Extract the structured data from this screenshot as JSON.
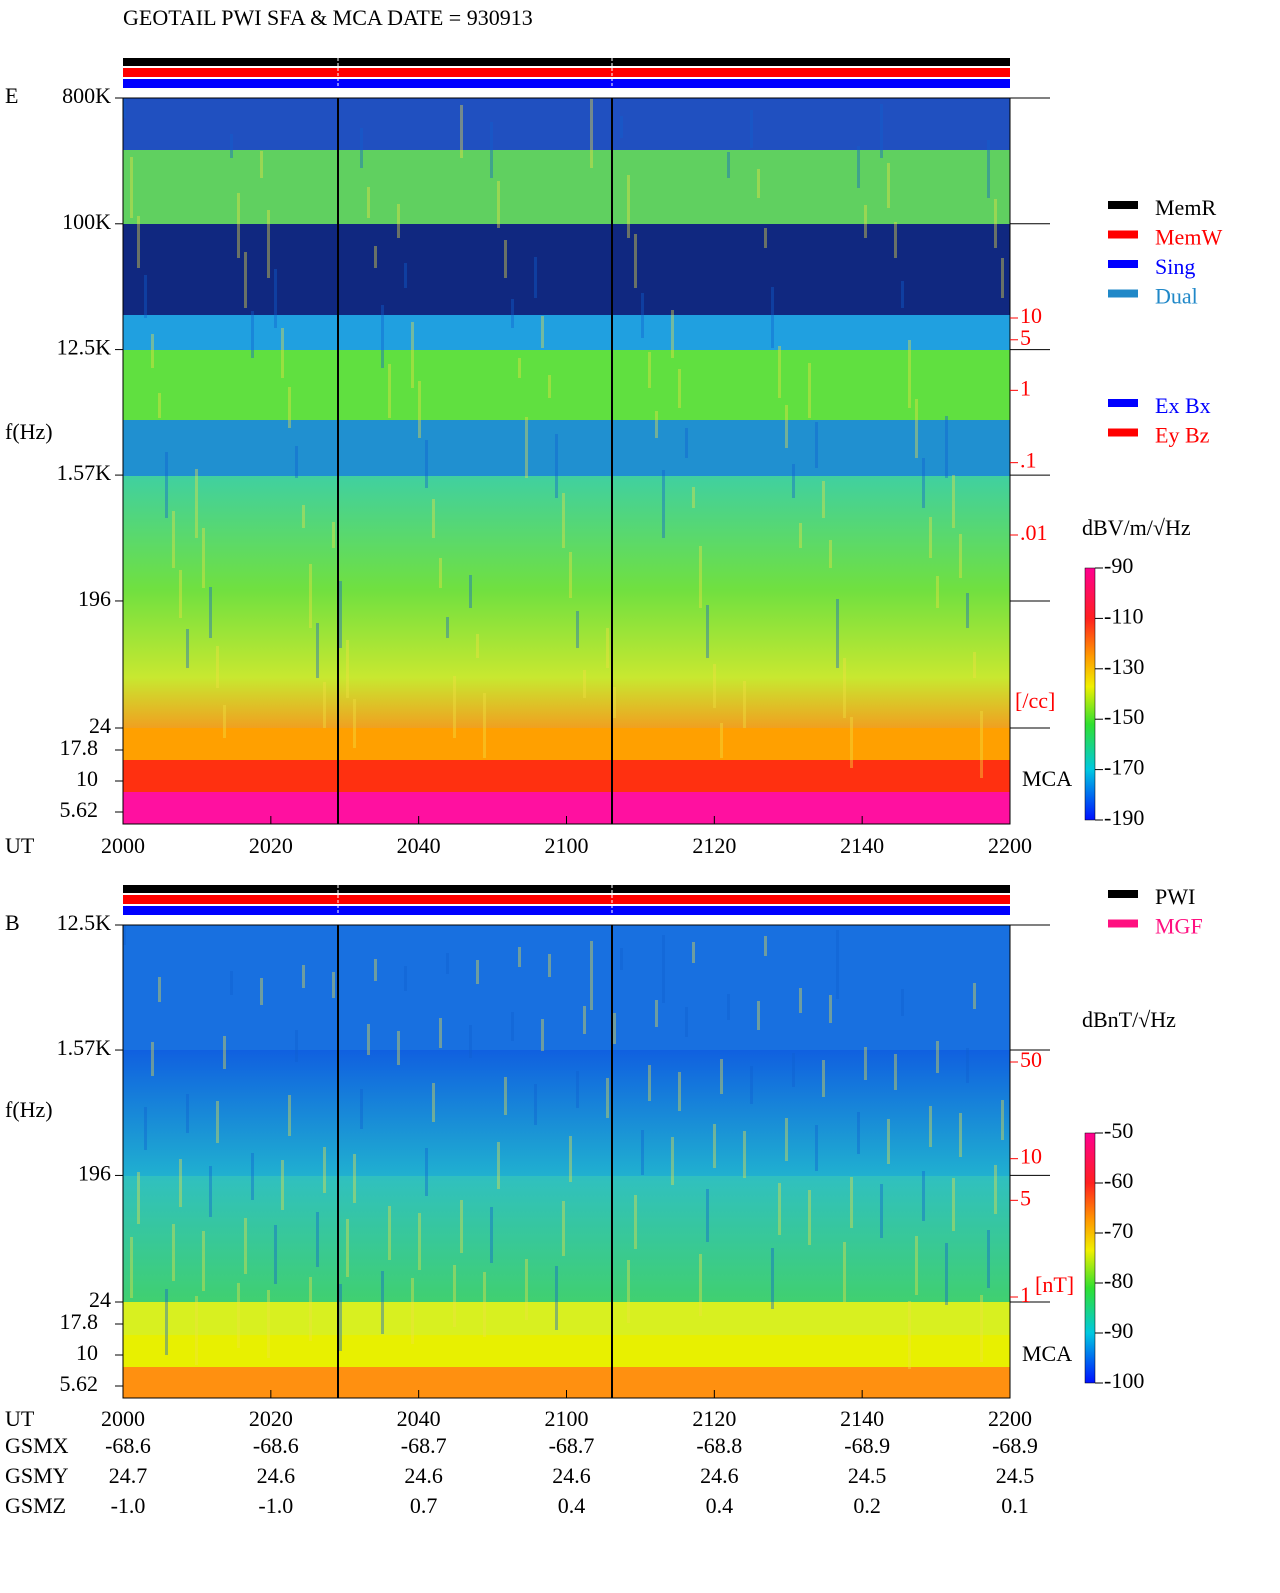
{
  "header": {
    "title": "GEOTAIL  PWI SFA & MCA   DATE = 930913"
  },
  "chart_data": [
    {
      "type": "spectrogram",
      "panel": "E",
      "y_label": "f(Hz)",
      "x_label": "UT",
      "log_scale": true,
      "ylim": [
        24,
        800000
      ],
      "yticks": [
        {
          "value": 800000,
          "label": "800K"
        },
        {
          "value": 100000,
          "label": "100K"
        },
        {
          "value": 12500,
          "label": "12.5K"
        },
        {
          "value": 1570,
          "label": "1.57K"
        },
        196,
        24
      ],
      "mca_label": "MCA",
      "mca_ticks": [
        17.8,
        10,
        5.62
      ],
      "x": [
        "2000",
        "2020",
        "2040",
        "2100",
        "2120",
        "2140",
        "2200"
      ],
      "y2lim": [
        0.01,
        10
      ],
      "y2ticks": [
        10,
        5,
        1,
        {
          "value": 0.1,
          "label": ".1"
        },
        {
          "value": 0.01,
          "label": ".01"
        }
      ],
      "y2_label": "[/cc]",
      "y2_color": "#ff0000",
      "legend": [
        {
          "name": "MemR",
          "color": "#000000"
        },
        {
          "name": "MemW",
          "color": "#ff0000"
        },
        {
          "name": "Sing",
          "color": "#0000ff"
        },
        {
          "name": "Dual",
          "color": "#2088c8"
        }
      ],
      "legend2": [
        {
          "name": "Ex Bx",
          "color": "#0000ff"
        },
        {
          "name": "Ey Bz",
          "color": "#ff0000"
        }
      ],
      "colorbar": {
        "label": "dBV/m/√Hz",
        "lim": [
          -190,
          -90
        ],
        "ticks": [
          -90,
          -110,
          -130,
          -150,
          -170,
          -190
        ]
      }
    },
    {
      "type": "spectrogram",
      "panel": "B",
      "y_label": "f(Hz)",
      "x_label": "UT",
      "log_scale": true,
      "ylim": [
        24,
        12500
      ],
      "yticks": [
        {
          "value": 12500,
          "label": "12.5K"
        },
        {
          "value": 1570,
          "label": "1.57K"
        },
        196,
        24
      ],
      "mca_label": "MCA",
      "mca_ticks": [
        17.8,
        10,
        5.62
      ],
      "x": [
        "2000",
        "2020",
        "2040",
        "2100",
        "2120",
        "2140",
        "2200"
      ],
      "y2lim": [
        1,
        50
      ],
      "y2ticks": [
        50,
        10,
        5,
        1
      ],
      "y2_label": "[nT]",
      "y2_color": "#ff0000",
      "legend": [
        {
          "name": "PWI",
          "color": "#000000"
        },
        {
          "name": "MGF",
          "color": "#ff1080"
        }
      ],
      "colorbar": {
        "label": "dBnT/√Hz",
        "lim": [
          -100,
          -50
        ],
        "ticks": [
          -50,
          -60,
          -70,
          -80,
          -90,
          -100
        ]
      }
    }
  ],
  "orbit": {
    "rows": [
      {
        "label": "GSMX",
        "values": [
          "-68.6",
          "-68.6",
          "-68.7",
          "-68.7",
          "-68.8",
          "-68.9",
          "-68.9"
        ]
      },
      {
        "label": "GSMY",
        "values": [
          "24.7",
          "24.6",
          "24.6",
          "24.6",
          "24.6",
          "24.5",
          "24.5"
        ]
      },
      {
        "label": "GSMZ",
        "values": [
          "-1.0",
          "-1.0",
          "0.7",
          "0.4",
          "0.4",
          "0.2",
          "0.1"
        ]
      }
    ]
  }
}
